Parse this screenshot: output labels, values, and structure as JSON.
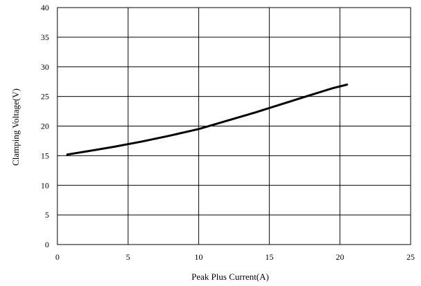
{
  "chart_data": {
    "type": "line",
    "xlabel": "Peak Plus Current(A)",
    "ylabel": "Clamping Voltage(V)",
    "xlim": [
      0,
      25
    ],
    "ylim": [
      0,
      40
    ],
    "x_ticks": [
      0,
      5,
      10,
      15,
      20,
      25
    ],
    "y_ticks": [
      0,
      5,
      10,
      15,
      20,
      25,
      30,
      35,
      40
    ],
    "grid": true,
    "series": [
      {
        "color": "#000000",
        "x": [
          0.7,
          2,
          4,
          6,
          8,
          10,
          12,
          14,
          16,
          18,
          19.5,
          20.5
        ],
        "y": [
          15.2,
          15.7,
          16.5,
          17.4,
          18.4,
          19.5,
          20.9,
          22.3,
          23.8,
          25.3,
          26.4,
          27.0
        ]
      }
    ]
  }
}
